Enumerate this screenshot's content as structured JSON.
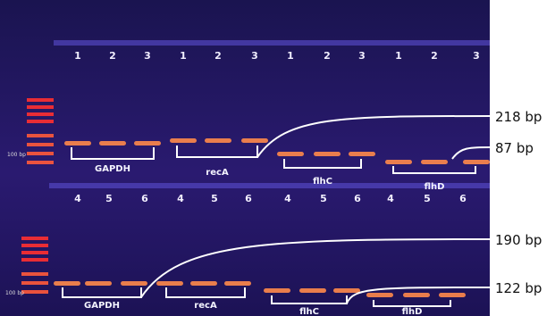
{
  "top_row": {
    "lanes": [
      "1",
      "2",
      "3",
      "1",
      "2",
      "3",
      "1",
      "2",
      "3",
      "1",
      "2",
      "3"
    ],
    "genes": [
      "GAPDH",
      "recA",
      "flhC",
      "flhD"
    ],
    "ladder_label": "100 bp"
  },
  "bottom_row": {
    "lanes": [
      "4",
      "5",
      "6",
      "4",
      "5",
      "6",
      "4",
      "5",
      "6",
      "4",
      "5",
      "6"
    ],
    "genes": [
      "GAPDH",
      "recA",
      "flhC",
      "flhD"
    ],
    "ladder_label": "100 bp"
  },
  "size_labels": [
    "218 bp",
    "87 bp",
    "190 bp",
    "122 bp"
  ]
}
